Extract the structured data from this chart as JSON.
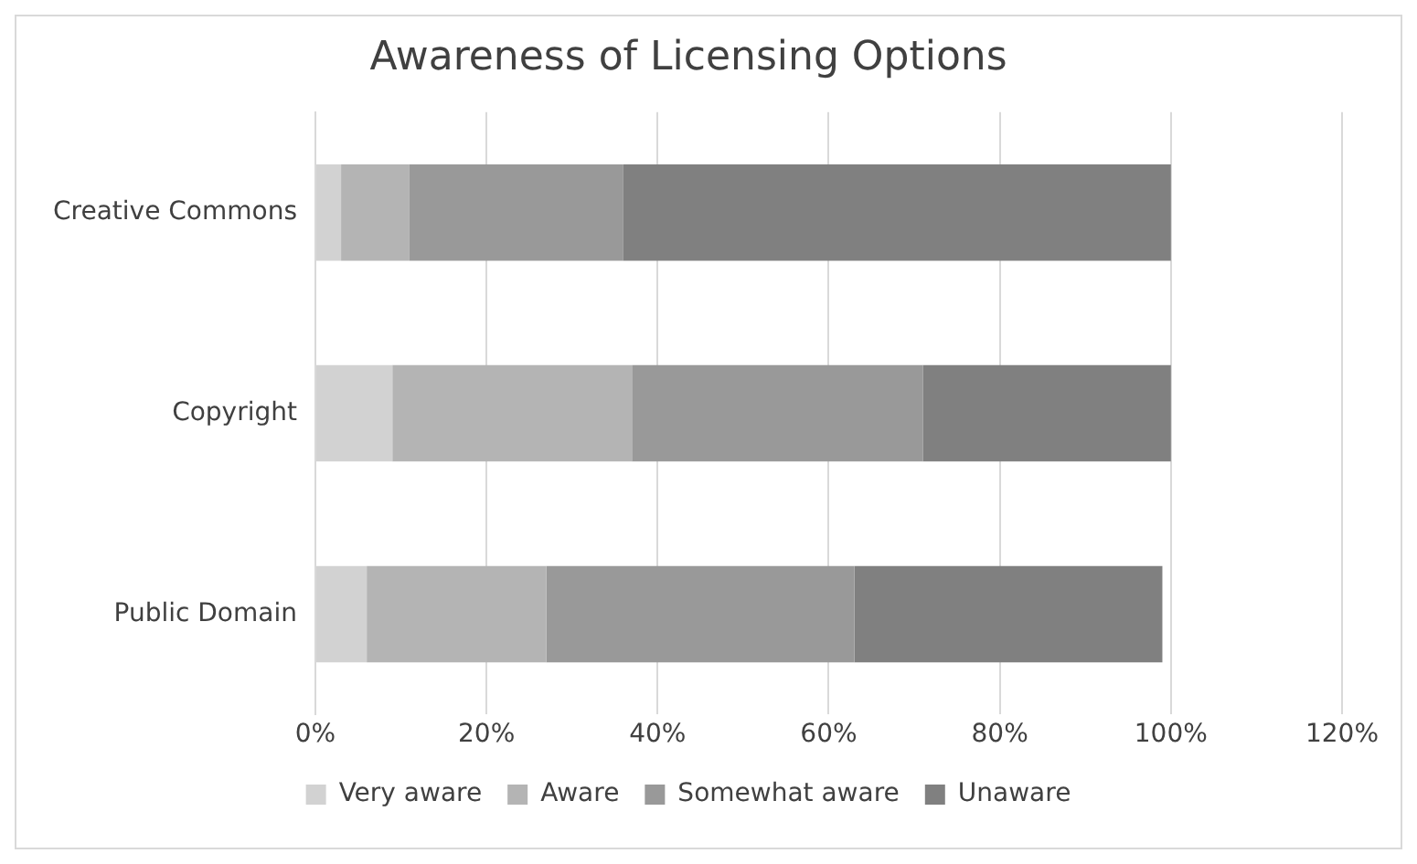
{
  "chart_data": {
    "type": "bar",
    "orientation": "horizontal",
    "stacked": true,
    "title": "Awareness of Licensing Options",
    "categories": [
      "Creative Commons",
      "Copyright",
      "Public Domain"
    ],
    "series": [
      {
        "name": "Very aware",
        "color": "#d2d2d2",
        "values": [
          3,
          9,
          6
        ]
      },
      {
        "name": "Aware",
        "color": "#b4b4b4",
        "values": [
          8,
          28,
          21
        ]
      },
      {
        "name": "Somewhat aware",
        "color": "#999999",
        "values": [
          25,
          34,
          36
        ]
      },
      {
        "name": "Unaware",
        "color": "#808080",
        "values": [
          64,
          29,
          36
        ]
      }
    ],
    "xlim": [
      0,
      120
    ],
    "xticks": [
      {
        "value": 0,
        "label": "0%"
      },
      {
        "value": 20,
        "label": "20%"
      },
      {
        "value": 40,
        "label": "40%"
      },
      {
        "value": 60,
        "label": "60%"
      },
      {
        "value": 80,
        "label": "80%"
      },
      {
        "value": 100,
        "label": "100%"
      },
      {
        "value": 120,
        "label": "120%"
      }
    ],
    "grid": "x",
    "legend": "bottom"
  }
}
